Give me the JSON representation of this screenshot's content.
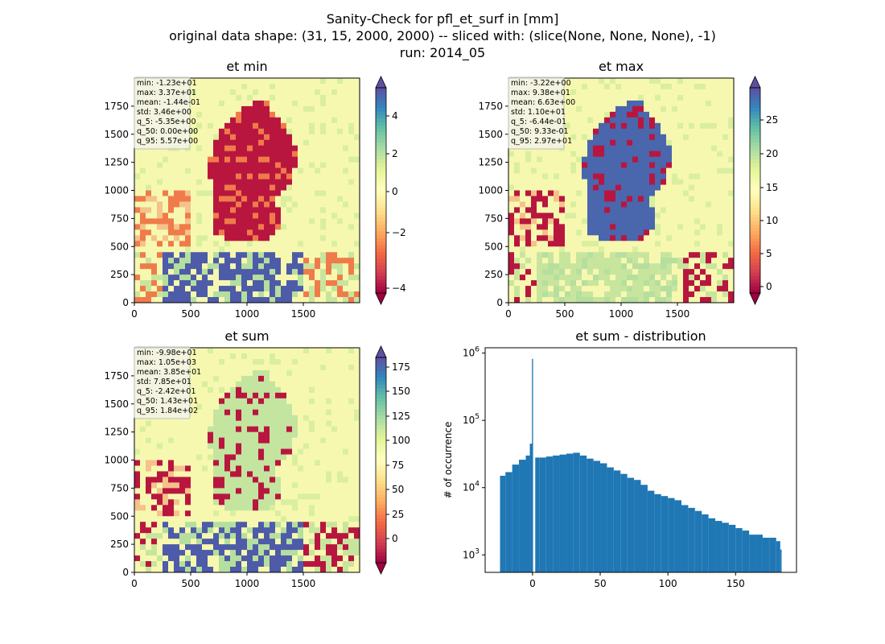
{
  "suptitle": {
    "line1": "Sanity-Check for pfl_et_surf in [mm]",
    "line2": "original data shape: (31, 15, 2000, 2000) -- sliced with: (slice(None, None, None), -1)",
    "line3": "run: 2014_05"
  },
  "chart_data": [
    {
      "type": "heatmap",
      "title": "et min",
      "xlabel": "",
      "ylabel": "",
      "xlim": [
        0,
        2000
      ],
      "ylim": [
        0,
        2000
      ],
      "xticks": [
        "0",
        "500",
        "1000",
        "1500"
      ],
      "yticks": [
        "0",
        "250",
        "500",
        "750",
        "1000",
        "1250",
        "1500",
        "1750"
      ],
      "colormap": "Spectral",
      "colorbar": {
        "range": [
          -5.35,
          5.57
        ],
        "ticks": [
          "−4",
          "−2",
          "0",
          "2",
          "4"
        ],
        "tick_values": [
          -4,
          -2,
          0,
          2,
          4
        ],
        "extend": "both"
      },
      "stats": [
        "min: -1.23e+01",
        "max: 3.37e+01",
        "mean: -1.44e-01",
        "std: 3.46e+00",
        "q_5: -5.35e+00",
        "q_50: 0.00e+00",
        "q_95: 5.57e+00"
      ],
      "colors": {
        "background": "#f7f8b0",
        "region": "#b8163f",
        "south": "#4d5ba8",
        "accent": "#f07b4a"
      }
    },
    {
      "type": "heatmap",
      "title": "et max",
      "xlabel": "",
      "ylabel": "",
      "xlim": [
        0,
        2000
      ],
      "ylim": [
        0,
        2000
      ],
      "xticks": [
        "0",
        "500",
        "1000",
        "1500"
      ],
      "yticks": [
        "0",
        "250",
        "500",
        "750",
        "1000",
        "1250",
        "1500",
        "1750"
      ],
      "colormap": "Spectral",
      "colorbar": {
        "range": [
          -0.644,
          29.7
        ],
        "ticks": [
          "0",
          "5",
          "10",
          "15",
          "20",
          "25"
        ],
        "tick_values": [
          0,
          5,
          10,
          15,
          20,
          25
        ],
        "extend": "both"
      },
      "stats": [
        "min: -3.22e+00",
        "max: 9.38e+01",
        "mean: 6.63e+00",
        "std: 1.10e+01",
        "q_5: -6.44e-01",
        "q_50: 9.33e-01",
        "q_95: 2.97e+01"
      ],
      "colors": {
        "background": "#f7f8b0",
        "region": "#4a66ad",
        "south": "#c8e59e",
        "accent": "#b8163f"
      }
    },
    {
      "type": "heatmap",
      "title": "et sum",
      "xlabel": "",
      "ylabel": "",
      "xlim": [
        0,
        2000
      ],
      "ylim": [
        0,
        2000
      ],
      "xticks": [
        "0",
        "500",
        "1000",
        "1500"
      ],
      "yticks": [
        "0",
        "250",
        "500",
        "750",
        "1000",
        "1250",
        "1500",
        "1750"
      ],
      "colormap": "Spectral",
      "colorbar": {
        "range": [
          -24.2,
          184
        ],
        "ticks": [
          "0",
          "25",
          "50",
          "75",
          "100",
          "125",
          "150",
          "175"
        ],
        "tick_values": [
          0,
          25,
          50,
          75,
          100,
          125,
          150,
          175
        ],
        "extend": "both"
      },
      "stats": [
        "min: -9.98e+01",
        "max: 1.05e+03",
        "mean: 3.85e+01",
        "std: 7.85e+01",
        "q_5: -2.42e+01",
        "q_50: 1.43e+01",
        "q_95: 1.84e+02"
      ],
      "colors": {
        "background": "#f7f8b0",
        "region": "#c3e59f",
        "south": "#4d5ba8",
        "accent": "#b8163f"
      }
    },
    {
      "type": "bar",
      "title": "et sum - distribution",
      "xlabel": "",
      "ylabel": "# of occurrence",
      "xlim": [
        -35,
        195
      ],
      "ylim": [
        550,
        1200000
      ],
      "yscale": "log",
      "xticks": [
        "0",
        "50",
        "100",
        "150"
      ],
      "xtick_values": [
        0,
        50,
        100,
        150
      ],
      "yticks": [
        "10^3",
        "10^4",
        "10^5",
        "10^6"
      ],
      "ytick_values": [
        1000,
        10000,
        100000,
        1000000
      ],
      "bar_color": "#1f77b4",
      "x": [
        -24,
        -20,
        -15,
        -10,
        -5,
        -2,
        0,
        2,
        5,
        10,
        15,
        20,
        25,
        30,
        35,
        40,
        45,
        50,
        55,
        60,
        65,
        70,
        75,
        80,
        85,
        90,
        95,
        100,
        105,
        110,
        115,
        120,
        125,
        130,
        135,
        140,
        145,
        150,
        155,
        160,
        165,
        170,
        175,
        180,
        183
      ],
      "values": [
        15000,
        17000,
        22000,
        26000,
        30000,
        45000,
        820000,
        28000,
        28000,
        29000,
        30000,
        31000,
        32000,
        33000,
        30000,
        27000,
        25000,
        23000,
        20000,
        18000,
        16000,
        14000,
        13000,
        11000,
        9000,
        8000,
        7500,
        7000,
        6500,
        5500,
        5000,
        4500,
        4000,
        3500,
        3200,
        3000,
        2800,
        2500,
        2300,
        2000,
        2000,
        1800,
        1800,
        1600,
        1200
      ]
    }
  ]
}
